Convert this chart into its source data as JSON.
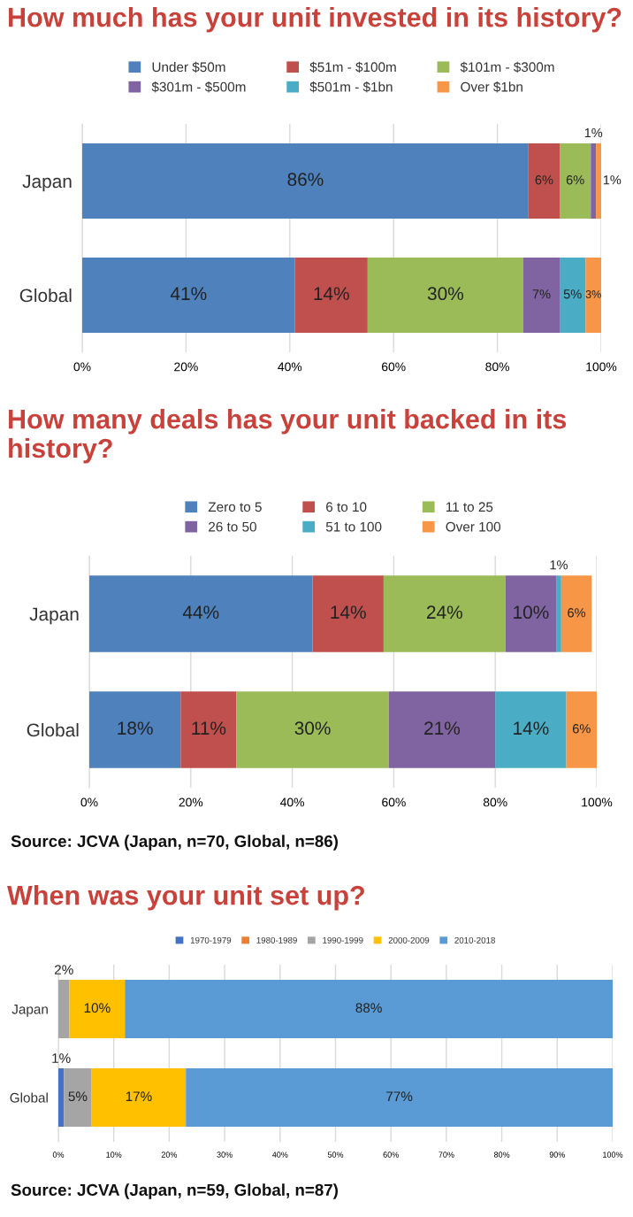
{
  "chart_data": [
    {
      "type": "bar",
      "orientation": "horizontal",
      "stacked": true,
      "title": "How much has your unit invested in its history?",
      "categories": [
        "Japan",
        "Global"
      ],
      "xlim": [
        0,
        100
      ],
      "xticks": [
        {
          "value": 0,
          "label": "0%"
        },
        {
          "value": 20,
          "label": "20%"
        },
        {
          "value": 40,
          "label": "40%"
        },
        {
          "value": 60,
          "label": "60%"
        },
        {
          "value": 80,
          "label": "80%"
        },
        {
          "value": 100,
          "label": "100%"
        }
      ],
      "grid": "x",
      "legend": "top",
      "series": [
        {
          "name": "Under $50m",
          "color": "#4f81bd",
          "values": [
            86,
            41
          ],
          "value_labels": [
            "86%",
            "41%"
          ]
        },
        {
          "name": "$51m - $100m",
          "color": "#c0504d",
          "values": [
            6,
            14
          ],
          "value_labels": [
            "6%",
            "14%"
          ]
        },
        {
          "name": "$101m - $300m",
          "color": "#9bbb59",
          "values": [
            6,
            30
          ],
          "value_labels": [
            "6%",
            "30%"
          ]
        },
        {
          "name": "$301m - $500m",
          "color": "#8064a2",
          "values": [
            1,
            7
          ],
          "value_labels": [
            "1%",
            "7%"
          ]
        },
        {
          "name": "$501m - $1bn",
          "color": "#4bacc6",
          "values": [
            0,
            5
          ],
          "value_labels": [
            null,
            "5%"
          ]
        },
        {
          "name": "Over $1bn",
          "color": "#f79646",
          "values": [
            1,
            3
          ],
          "value_labels": [
            "1%",
            "3%"
          ]
        }
      ]
    },
    {
      "type": "bar",
      "orientation": "horizontal",
      "stacked": true,
      "title": "How many deals has your unit backed in its history?",
      "categories": [
        "Japan",
        "Global"
      ],
      "xlim": [
        0,
        100
      ],
      "xticks": [
        {
          "value": 0,
          "label": "0%"
        },
        {
          "value": 20,
          "label": "20%"
        },
        {
          "value": 40,
          "label": "40%"
        },
        {
          "value": 60,
          "label": "60%"
        },
        {
          "value": 80,
          "label": "80%"
        },
        {
          "value": 100,
          "label": "100%"
        }
      ],
      "grid": "x",
      "legend": "top",
      "annotations": [
        "Source: JCVA (Japan, n=70, Global, n=86)"
      ],
      "series": [
        {
          "name": "Zero to 5",
          "color": "#4f81bd",
          "values": [
            44,
            18
          ],
          "value_labels": [
            "44%",
            "18%"
          ]
        },
        {
          "name": "6 to 10",
          "color": "#c0504d",
          "values": [
            14,
            11
          ],
          "value_labels": [
            "14%",
            "11%"
          ]
        },
        {
          "name": "11 to 25",
          "color": "#9bbb59",
          "values": [
            24,
            30
          ],
          "value_labels": [
            "24%",
            "30%"
          ]
        },
        {
          "name": "26 to 50",
          "color": "#8064a2",
          "values": [
            10,
            21
          ],
          "value_labels": [
            "10%",
            "21%"
          ]
        },
        {
          "name": "51 to 100",
          "color": "#4bacc6",
          "values": [
            1,
            14
          ],
          "value_labels": [
            "1%",
            "14%"
          ]
        },
        {
          "name": "Over 100",
          "color": "#f79646",
          "values": [
            6,
            6
          ],
          "value_labels": [
            "6%",
            "6%"
          ]
        }
      ]
    },
    {
      "type": "bar",
      "orientation": "horizontal",
      "stacked": true,
      "title": "When was your unit set up?",
      "categories": [
        "Japan",
        "Global"
      ],
      "xlim": [
        0,
        100
      ],
      "xticks": [
        {
          "value": 0,
          "label": "0%"
        },
        {
          "value": 10,
          "label": "10%"
        },
        {
          "value": 20,
          "label": "20%"
        },
        {
          "value": 30,
          "label": "30%"
        },
        {
          "value": 40,
          "label": "40%"
        },
        {
          "value": 50,
          "label": "50%"
        },
        {
          "value": 60,
          "label": "60%"
        },
        {
          "value": 70,
          "label": "70%"
        },
        {
          "value": 80,
          "label": "80%"
        },
        {
          "value": 90,
          "label": "90%"
        },
        {
          "value": 100,
          "label": "100%"
        }
      ],
      "grid": "x",
      "legend": "top",
      "annotations": [
        "Source: JCVA (Japan, n=59, Global, n=87)"
      ],
      "series": [
        {
          "name": "1970-1979",
          "color": "#4472c4",
          "values": [
            0,
            1
          ],
          "value_labels": [
            null,
            "1%"
          ]
        },
        {
          "name": "1980-1989",
          "color": "#ed7d31",
          "values": [
            0,
            0
          ],
          "value_labels": [
            null,
            null
          ]
        },
        {
          "name": "1990-1999",
          "color": "#a5a5a5",
          "values": [
            2,
            5
          ],
          "value_labels": [
            "2%",
            "5%"
          ]
        },
        {
          "name": "2000-2009",
          "color": "#ffc000",
          "values": [
            10,
            17
          ],
          "value_labels": [
            "10%",
            "17%"
          ]
        },
        {
          "name": "2010-2018",
          "color": "#5b9bd5",
          "values": [
            88,
            77
          ],
          "value_labels": [
            "88%",
            "77%"
          ]
        }
      ]
    }
  ]
}
